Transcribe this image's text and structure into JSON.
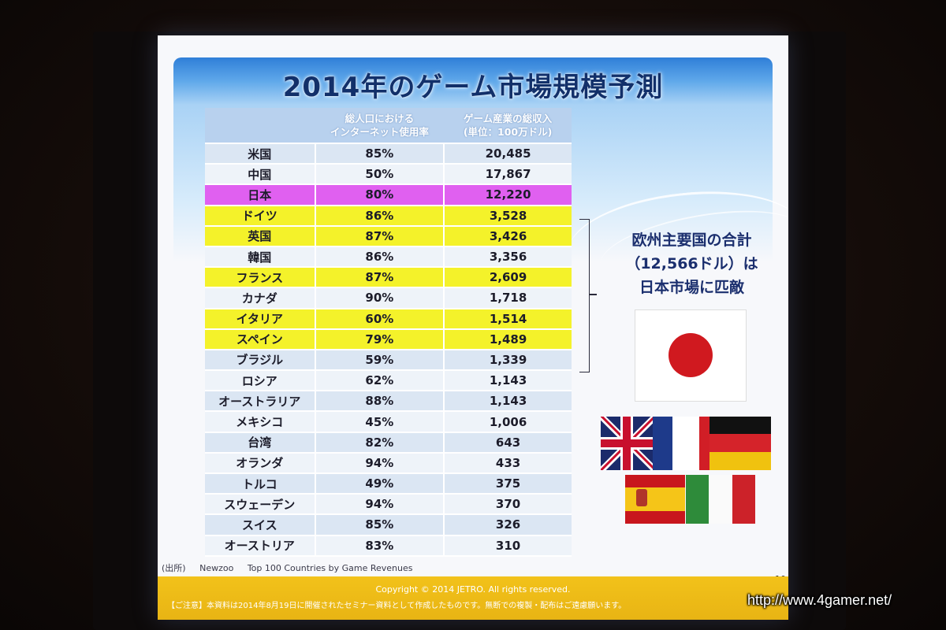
{
  "slide": {
    "title": "2014年のゲーム市場規模予測",
    "table": {
      "headers": [
        "",
        "総人口における\nインターネット使用率",
        "ゲーム産業の総収入\n(単位：100万ドル)"
      ],
      "rows": [
        {
          "country": "米国",
          "rate": "85%",
          "revenue": "20,485",
          "highlight": "none"
        },
        {
          "country": "中国",
          "rate": "50%",
          "revenue": "17,867",
          "highlight": "none"
        },
        {
          "country": "日本",
          "rate": "80%",
          "revenue": "12,220",
          "highlight": "japan"
        },
        {
          "country": "ドイツ",
          "rate": "86%",
          "revenue": "3,528",
          "highlight": "europe"
        },
        {
          "country": "英国",
          "rate": "87%",
          "revenue": "3,426",
          "highlight": "europe"
        },
        {
          "country": "韓国",
          "rate": "86%",
          "revenue": "3,356",
          "highlight": "none"
        },
        {
          "country": "フランス",
          "rate": "87%",
          "revenue": "2,609",
          "highlight": "europe"
        },
        {
          "country": "カナダ",
          "rate": "90%",
          "revenue": "1,718",
          "highlight": "none"
        },
        {
          "country": "イタリア",
          "rate": "60%",
          "revenue": "1,514",
          "highlight": "europe"
        },
        {
          "country": "スペイン",
          "rate": "79%",
          "revenue": "1,489",
          "highlight": "europe"
        },
        {
          "country": "ブラジル",
          "rate": "59%",
          "revenue": "1,339",
          "highlight": "none"
        },
        {
          "country": "ロシア",
          "rate": "62%",
          "revenue": "1,143",
          "highlight": "none"
        },
        {
          "country": "オーストラリア",
          "rate": "88%",
          "revenue": "1,143",
          "highlight": "none"
        },
        {
          "country": "メキシコ",
          "rate": "45%",
          "revenue": "1,006",
          "highlight": "none"
        },
        {
          "country": "台湾",
          "rate": "82%",
          "revenue": "643",
          "highlight": "none"
        },
        {
          "country": "オランダ",
          "rate": "94%",
          "revenue": "433",
          "highlight": "none"
        },
        {
          "country": "トルコ",
          "rate": "49%",
          "revenue": "375",
          "highlight": "none"
        },
        {
          "country": "スウェーデン",
          "rate": "94%",
          "revenue": "370",
          "highlight": "none"
        },
        {
          "country": "スイス",
          "rate": "85%",
          "revenue": "326",
          "highlight": "none"
        },
        {
          "country": "オーストリア",
          "rate": "83%",
          "revenue": "310",
          "highlight": "none"
        }
      ]
    },
    "note": {
      "line1": "欧州主要国の合計",
      "line2": "（12,566ドル）は",
      "line3": "日本市場に匹敵"
    },
    "flags": [
      "japan-flag",
      "uk-flag",
      "france-flag",
      "germany-flag",
      "spain-flag",
      "italy-flag"
    ],
    "source": {
      "label": "(出所)",
      "name": "Newzoo",
      "title": "Top 100 Countries by Game Revenues"
    },
    "page_number": "10",
    "footer": {
      "copyright": "Copyright © 2014 JETRO. All rights reserved.",
      "caution": "【ご注意】本資料は2014年8月19日に開催されたセミナー資料として作成したものです。無断での複製・配布はご遠慮願います。"
    }
  },
  "watermark": "http://www.4gamer.net/",
  "colors": {
    "japan_highlight": "#e060f0",
    "europe_highlight": "#f4f22a",
    "title_color": "#12306a",
    "footer": "#f2c21a"
  }
}
